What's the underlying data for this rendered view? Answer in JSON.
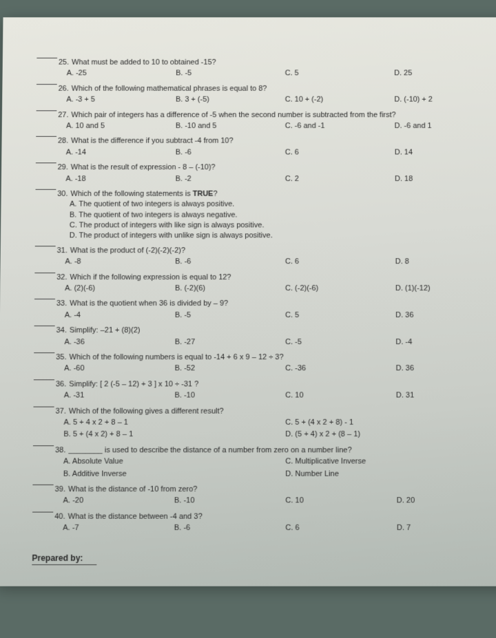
{
  "questions": [
    {
      "num": "25",
      "text": "What must be added to 10 to obtained -15?",
      "choices": [
        "A. -25",
        "B. -5",
        "C. 5",
        "D. 25"
      ]
    },
    {
      "num": "26",
      "text": "Which of the following mathematical phrases is equal to 8?",
      "choices": [
        "A. -3 + 5",
        "B. 3 + (-5)",
        "C. 10 + (-2)",
        "D. (-10) + 2"
      ]
    },
    {
      "num": "27",
      "text": "Which pair of integers has a difference of -5 when the second number is subtracted from the first?",
      "choices": [
        "A. 10 and 5",
        "B. -10 and 5",
        "C. -6 and -1",
        "D. -6 and 1"
      ]
    },
    {
      "num": "28",
      "text": "What is the difference if you subtract -4 from 10?",
      "choices": [
        "A. -14",
        "B. -6",
        "C. 6",
        "D. 14"
      ]
    },
    {
      "num": "29",
      "text": "What is the result of expression - 8 – (-10)?",
      "choices": [
        "A. -18",
        "B. -2",
        "C. 2",
        "D. 18"
      ]
    },
    {
      "num": "30",
      "text": "Which of the following statements is TRUE?",
      "statements": [
        "A. The quotient of two integers is always positive.",
        "B. The quotient of two integers is always negative.",
        "C. The product of integers with like sign is always positive.",
        "D. The product of integers with unlike sign is always positive."
      ]
    },
    {
      "num": "31",
      "text": "What is the product of (-2)(-2)(-2)?",
      "choices": [
        "A. -8",
        "B. -6",
        "C. 6",
        "D. 8"
      ]
    },
    {
      "num": "32",
      "text": "Which if the following expression is equal to 12?",
      "choices": [
        "A. (2)(-6)",
        "B. (-2)(6)",
        "C. (-2)(-6)",
        "D. (1)(-12)"
      ]
    },
    {
      "num": "33",
      "text": "What is the quotient when 36 is divided by – 9?",
      "choices": [
        "A. -4",
        "B. -5",
        "C. 5",
        "D. 36"
      ]
    },
    {
      "num": "34",
      "text": "Simplify: –21 + (8)(2)",
      "choices": [
        "A. -36",
        "B. -27",
        "C. -5",
        "D. -4"
      ]
    },
    {
      "num": "35",
      "text": "Which of the following numbers is equal to -14 + 6 x 9 – 12 ÷ 3?",
      "choices": [
        "A. -60",
        "B. -52",
        "C. -36",
        "D. 36"
      ]
    },
    {
      "num": "36",
      "text": "Simplify: [ 2 (-5 – 12) + 3 ] x 10 ÷ -31 ?",
      "choices": [
        "A. -31",
        "B. -10",
        "C. 10",
        "D. 31"
      ]
    },
    {
      "num": "37",
      "text": "Which of the following gives a different result?",
      "choices_half": [
        "A. 5 + 4 x 2 + 8 – 1",
        "C. 5 + (4 x 2 + 8) - 1",
        "B. 5 + (4 x 2) + 8 – 1",
        "D. (5 + 4) x 2 + (8 – 1)"
      ]
    },
    {
      "num": "38",
      "text": "________ is used to describe the distance of a number from zero on a number line?",
      "choices_half": [
        "A. Absolute Value",
        "C. Multiplicative Inverse",
        "B. Additive Inverse",
        "D. Number Line"
      ]
    },
    {
      "num": "39",
      "text": "What is the distance of -10 from zero?",
      "choices": [
        "A. -20",
        "B. -10",
        "C. 10",
        "D. 20"
      ]
    },
    {
      "num": "40",
      "text": "What is the distance between -4 and 3?",
      "choices": [
        "A. -7",
        "B. -6",
        "C. 6",
        "D. 7"
      ]
    }
  ],
  "footer": "Prepared by:"
}
